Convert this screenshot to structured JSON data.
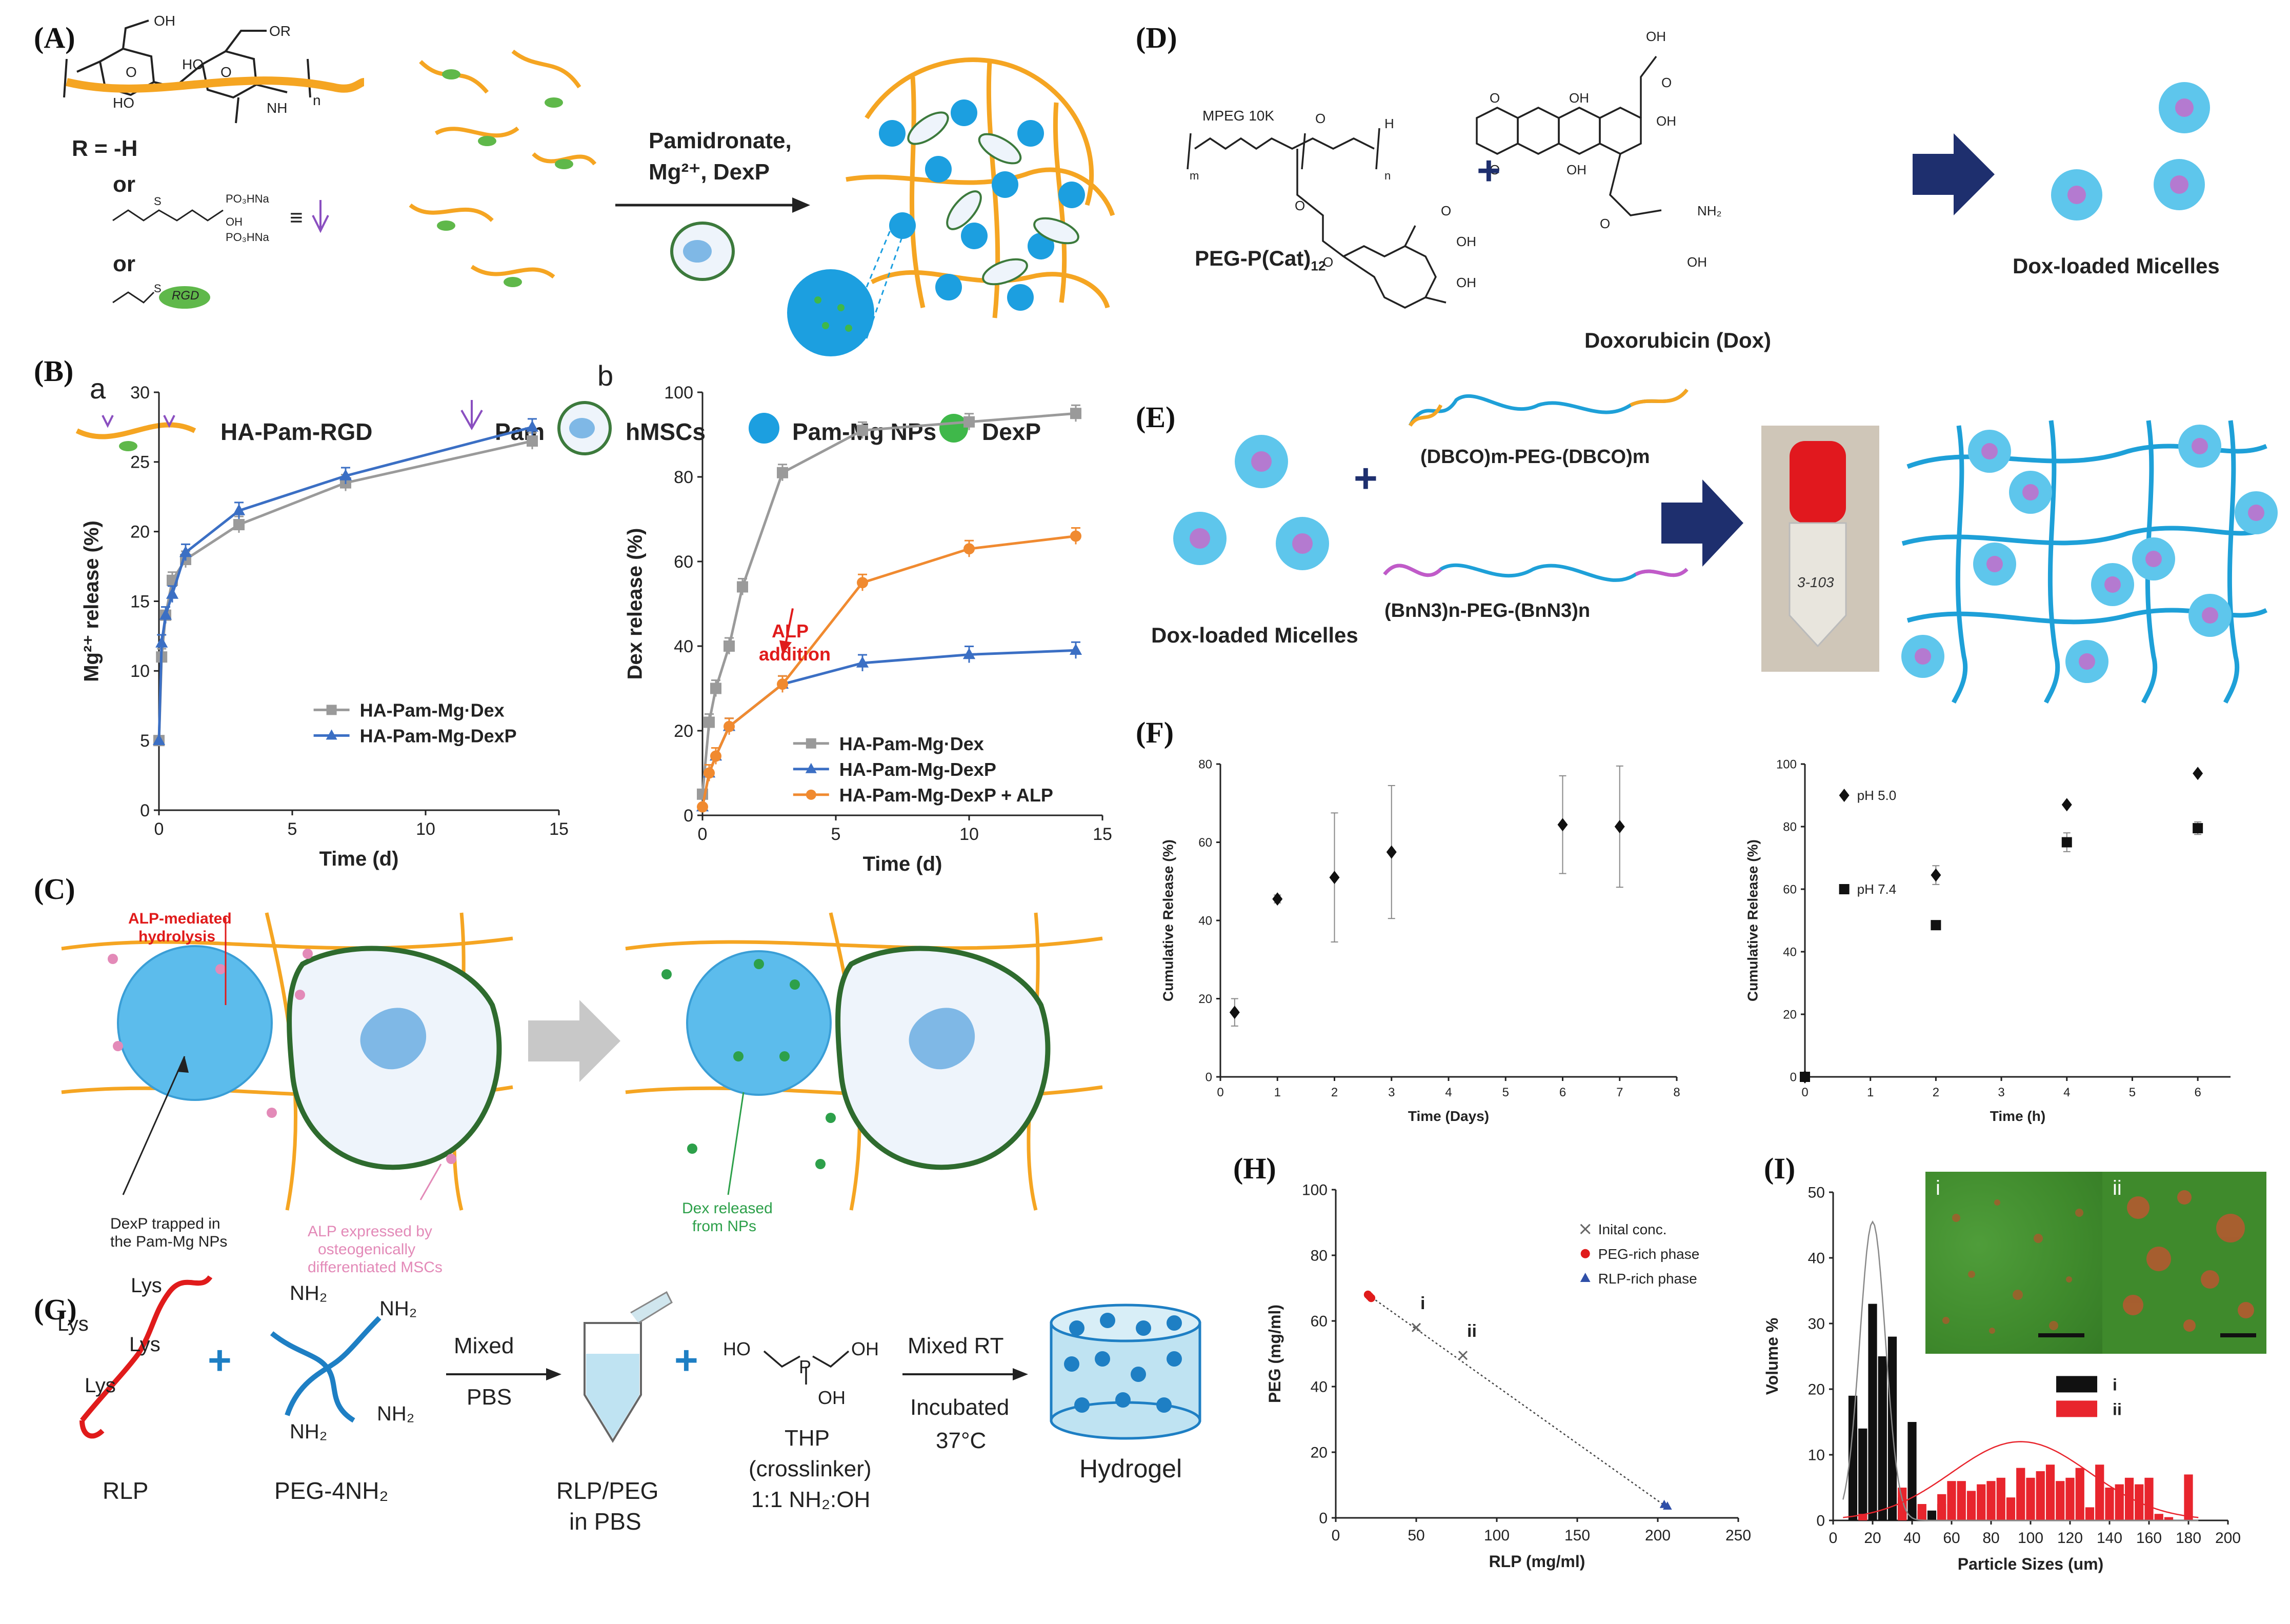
{
  "panels": {
    "a": "(A)",
    "b": "(B)",
    "c": "(C)",
    "d": "(D)",
    "e": "(E)",
    "f": "(F)",
    "g": "(G)",
    "h": "(H)",
    "i": "(I)"
  },
  "panel_a": {
    "r_label": "R = -H",
    "or1": "or",
    "or2": "or",
    "rgd_tag": "RGD",
    "equiv": "≡",
    "arrow_label1": "Pamidronate,",
    "arrow_label2": "Mg²⁺, DexP",
    "legend": [
      "HA-Pam-RGD",
      "Pam",
      "hMSCs",
      "Pam-Mg NPs",
      "DexP"
    ]
  },
  "panel_b": {
    "sub_a": "a",
    "sub_b": "b",
    "alp_note1": "ALP",
    "alp_note2": "addition"
  },
  "panel_c": {
    "note_hydrolysis1": "ALP-mediated",
    "note_hydrolysis2": "hydrolysis",
    "note_trapped1": "DexP trapped in",
    "note_trapped2": "the Pam-Mg NPs",
    "note_alp1": "ALP expressed by",
    "note_alp2": "osteogenically",
    "note_alp3": "differentiated MSCs",
    "note_released1": "Dex released",
    "note_released2": "from NPs"
  },
  "panel_d": {
    "mpeg": "MPEG 10K",
    "peg_label": "PEG-P(Cat)",
    "peg_sub": "12",
    "dox_label": "Doxorubicin (Dox)",
    "micelles": "Dox-loaded Micelles"
  },
  "panel_e": {
    "micelles": "Dox-loaded Micelles",
    "dbco": "(DBCO)m-PEG-(DBCO)m",
    "bnn3": "(BnN3)n-PEG-(BnN3)n",
    "tube_text": "3-103"
  },
  "panel_g": {
    "lys": [
      "Lys",
      "Lys",
      "Lys",
      "Lys"
    ],
    "nh2": [
      "NH₂",
      "NH₂",
      "NH₂",
      "NH₂"
    ],
    "rlp": "RLP",
    "peg4": "PEG-4NH₂",
    "mixed": "Mixed",
    "pbs": "PBS",
    "rlp_peg1": "RLP/PEG",
    "rlp_peg2": "in PBS",
    "ho": "HO",
    "oh1": "OH",
    "oh2": "OH",
    "p": "P",
    "thp1": "THP",
    "thp2": "(crosslinker)",
    "thp3": "1:1 NH₂:OH",
    "mixed_rt": "Mixed RT",
    "incubated": "Incubated",
    "temp": "37°C",
    "hydrogel": "Hydrogel"
  },
  "panel_i": {
    "inset_i": "i",
    "inset_ii": "ii"
  },
  "chart_data": [
    {
      "id": "B-a",
      "type": "line",
      "xlabel": "Time (d)",
      "ylabel": "Mg²⁺ release (%)",
      "xlim": [
        0,
        15
      ],
      "ylim": [
        0,
        30
      ],
      "xticks": [
        0,
        5,
        10,
        15
      ],
      "yticks": [
        0,
        5,
        10,
        15,
        20,
        25,
        30
      ],
      "legend_position": "bottom-right",
      "series": [
        {
          "name": "HA-Pam-Mg·Dex",
          "color": "#9a9a9a",
          "marker": "square",
          "x": [
            0,
            0.1,
            0.25,
            0.5,
            1,
            3,
            7,
            14
          ],
          "y": [
            5,
            11,
            14,
            16.5,
            18,
            20.5,
            23.5,
            26.5
          ]
        },
        {
          "name": "HA-Pam-Mg-DexP",
          "color": "#3b6fc4",
          "marker": "triangle",
          "x": [
            0,
            0.1,
            0.25,
            0.5,
            1,
            3,
            7,
            14
          ],
          "y": [
            5,
            12,
            14,
            15.5,
            18.5,
            21.5,
            24,
            27.5
          ]
        }
      ]
    },
    {
      "id": "B-b",
      "type": "line",
      "xlabel": "Time (d)",
      "ylabel": "Dex release (%)",
      "xlim": [
        0,
        15
      ],
      "ylim": [
        0,
        100
      ],
      "xticks": [
        0,
        5,
        10,
        15
      ],
      "yticks": [
        0,
        20,
        40,
        60,
        80,
        100
      ],
      "legend_position": "bottom-right",
      "series": [
        {
          "name": "HA-Pam-Mg·Dex",
          "color": "#9a9a9a",
          "marker": "square",
          "x": [
            0,
            0.25,
            0.5,
            1,
            1.5,
            3,
            6,
            10,
            14
          ],
          "y": [
            5,
            22,
            30,
            40,
            54,
            81,
            91,
            93,
            95
          ]
        },
        {
          "name": "HA-Pam-Mg-DexP",
          "color": "#3b6fc4",
          "marker": "triangle",
          "x": [
            0,
            0.25,
            0.5,
            1,
            3,
            6,
            10,
            14
          ],
          "y": [
            2,
            10,
            14,
            21,
            31,
            36,
            38,
            39
          ]
        },
        {
          "name": "HA-Pam-Mg-DexP + ALP",
          "color": "#f08a30",
          "marker": "circle",
          "x": [
            0,
            0.25,
            0.5,
            1,
            3,
            6,
            10,
            14
          ],
          "y": [
            2,
            10,
            14,
            21,
            31,
            55,
            63,
            66
          ]
        }
      ]
    },
    {
      "id": "F-left",
      "type": "scatter",
      "xlabel": "Time (Days)",
      "ylabel": "Cumulative Release (%)",
      "xlim": [
        0,
        8
      ],
      "ylim": [
        0,
        80
      ],
      "xticks": [
        0,
        1,
        2,
        3,
        4,
        5,
        6,
        7,
        8
      ],
      "yticks": [
        0,
        20,
        40,
        60,
        80
      ],
      "series": [
        {
          "name": "release",
          "marker": "diamond",
          "x": [
            0.25,
            1,
            2,
            3,
            6,
            7
          ],
          "y": [
            16.5,
            45.5,
            51,
            57.5,
            64.5,
            64
          ],
          "err": [
            3.5,
            1,
            16.5,
            17,
            12.5,
            15.5
          ]
        }
      ]
    },
    {
      "id": "F-right",
      "type": "scatter",
      "xlabel": "Time (h)",
      "ylabel": "Cumulative Release (%)",
      "xlim": [
        0,
        6.5
      ],
      "ylim": [
        0,
        100
      ],
      "xticks": [
        0,
        1,
        2,
        3,
        4,
        5,
        6
      ],
      "yticks": [
        0,
        20,
        40,
        60,
        80,
        100
      ],
      "legend_position": "top-left",
      "series": [
        {
          "name": "pH 5.0",
          "marker": "diamond",
          "x": [
            0,
            2,
            4,
            6
          ],
          "y": [
            0,
            64.5,
            87,
            97
          ],
          "err": [
            0,
            3,
            0,
            0
          ]
        },
        {
          "name": "pH 7.4",
          "marker": "square",
          "x": [
            0,
            2,
            4,
            6
          ],
          "y": [
            0,
            48.5,
            75,
            79.5
          ],
          "err": [
            0,
            0,
            3,
            2
          ]
        }
      ]
    },
    {
      "id": "H",
      "type": "scatter",
      "xlabel": "RLP (mg/ml)",
      "ylabel": "PEG (mg/ml)",
      "xlim": [
        0,
        250
      ],
      "ylim": [
        0,
        100
      ],
      "xticks": [
        0,
        50,
        100,
        150,
        200,
        250
      ],
      "yticks": [
        0,
        20,
        40,
        60,
        80,
        100
      ],
      "legend_position": "top-right",
      "series": [
        {
          "name": "Inital conc.",
          "marker": "x",
          "color": "#666666",
          "x": [
            50,
            79
          ],
          "y": [
            58,
            49.5
          ]
        },
        {
          "name": "PEG-rich phase",
          "marker": "circle",
          "color": "#e01b1b",
          "x": [
            20,
            21,
            22
          ],
          "y": [
            68,
            67.5,
            67
          ]
        },
        {
          "name": "RLP-rich phase",
          "marker": "triangle",
          "color": "#2f4fa8",
          "x": [
            204,
            206
          ],
          "y": [
            4,
            3.5
          ]
        }
      ],
      "point_labels": [
        {
          "text": "i",
          "x": 50,
          "y": 58
        },
        {
          "text": "ii",
          "x": 79,
          "y": 49.5
        }
      ],
      "tie_line": {
        "x": [
          20,
          205
        ],
        "y": [
          68,
          3.5
        ]
      }
    },
    {
      "id": "I",
      "type": "bar",
      "xlabel": "Particle Sizes (um)",
      "ylabel": "Volume %",
      "xlim": [
        0,
        200
      ],
      "ylim": [
        0,
        50
      ],
      "xticks": [
        0,
        20,
        40,
        60,
        80,
        100,
        120,
        140,
        160,
        180,
        200
      ],
      "yticks": [
        0,
        10,
        20,
        30,
        40,
        50
      ],
      "legend_position": "middle-right",
      "bin_width": 5,
      "series": [
        {
          "name": "i",
          "color": "#111111",
          "x": [
            10,
            15,
            20,
            25,
            30,
            35,
            40,
            45,
            50,
            55
          ],
          "y": [
            19,
            14,
            33,
            25,
            28,
            3.5,
            15,
            1.5,
            1.5,
            2.5
          ]
        },
        {
          "name": "ii",
          "color": "#e8252d",
          "x": [
            15,
            35,
            45,
            55,
            60,
            65,
            70,
            75,
            80,
            85,
            90,
            95,
            100,
            105,
            110,
            115,
            120,
            125,
            130,
            135,
            140,
            145,
            150,
            155,
            160,
            165,
            170,
            175,
            180
          ],
          "y": [
            1,
            5,
            2.5,
            4,
            6,
            6,
            4.5,
            5.5,
            6,
            6.5,
            3.5,
            8,
            6.5,
            7.5,
            8.5,
            6,
            6.5,
            8,
            2,
            8.5,
            5,
            5.5,
            6.5,
            5.5,
            6.5,
            1,
            0.5,
            0,
            7
          ]
        }
      ],
      "fit_curves": [
        {
          "series": "i",
          "color": "#888888",
          "mean": 20,
          "sd": 6.5,
          "peak": 45.5
        },
        {
          "series": "ii",
          "color": "#e8252d",
          "mean": 95,
          "sd": 35,
          "peak": 12
        }
      ]
    }
  ]
}
